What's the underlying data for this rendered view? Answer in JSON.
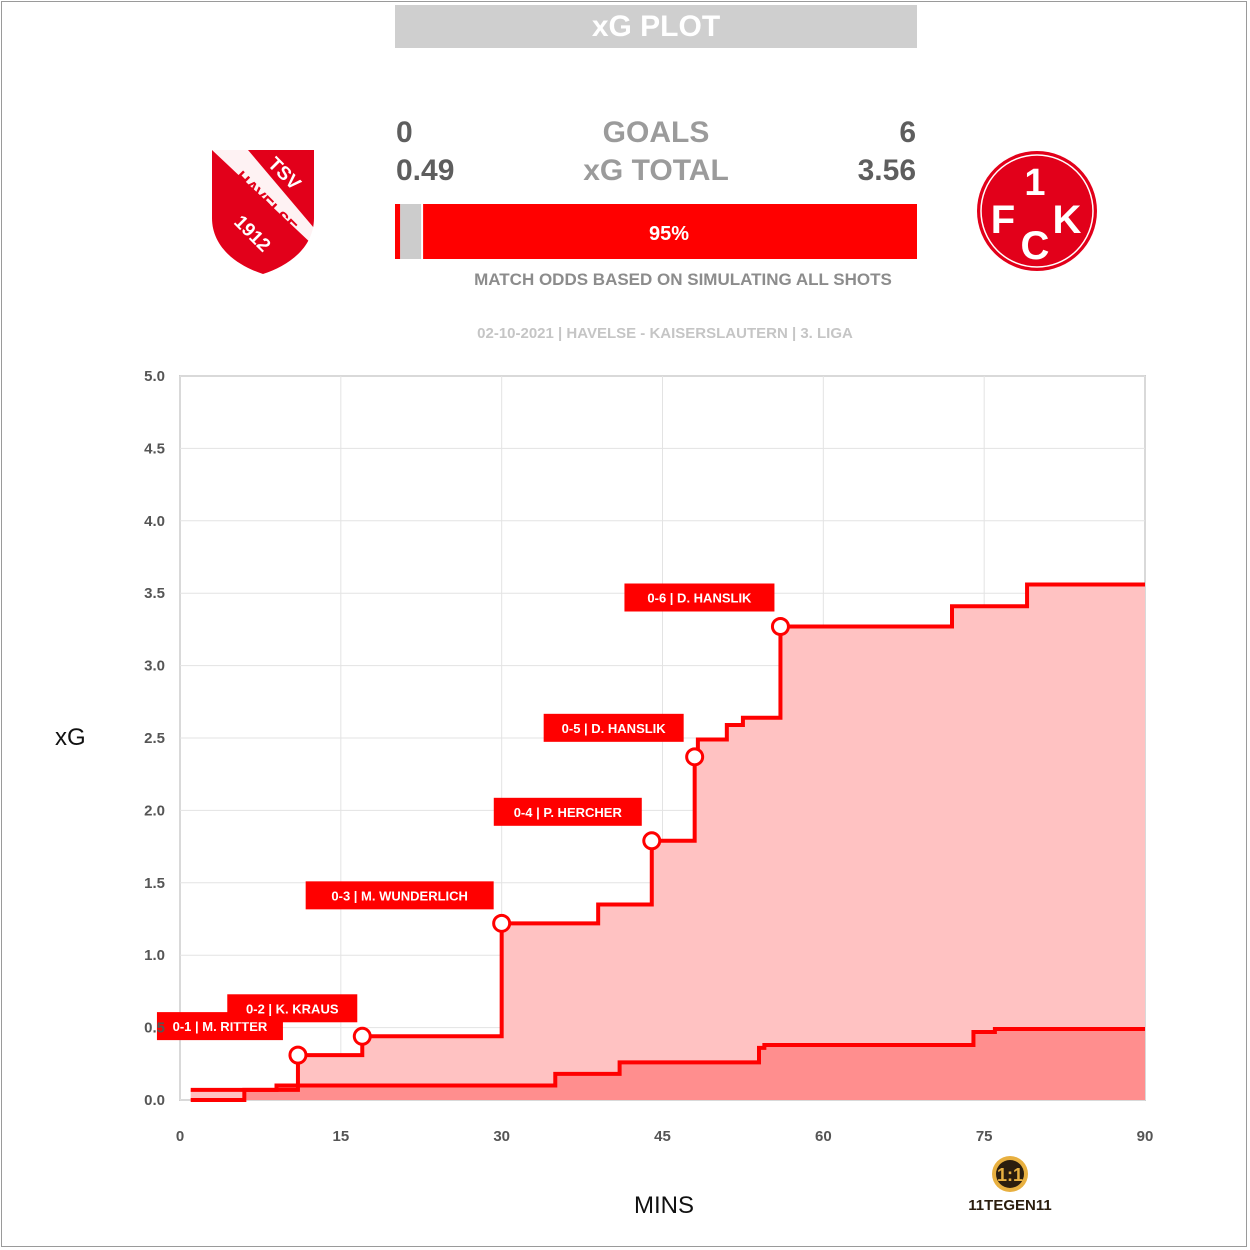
{
  "title": "xG PLOT",
  "home": {
    "goals": "0",
    "xg_total": "0.49",
    "badge_text": [
      "TSV",
      "HAVELSE",
      "1912"
    ]
  },
  "away": {
    "goals": "6",
    "xg_total": "3.56",
    "badge_text": "1FCK"
  },
  "labels": {
    "goals": "GOALS",
    "xg_total": "xG TOTAL"
  },
  "odds": {
    "draw": 0.04,
    "away": 0.95,
    "home": 0.01,
    "away_label": "95%",
    "caption": "MATCH ODDS BASED ON SIMULATING ALL SHOTS"
  },
  "match_info": "02-10-2021 | HAVELSE - KAISERSLAUTERN | 3. LIGA",
  "brand": "11TEGEN11",
  "colors": {
    "red": "#ff0000",
    "fill_away": "#ffc2c2",
    "fill_home": "#ff8e8e",
    "odds_draw": "#cccccc",
    "grid": "#e3e3e3",
    "title_bg": "#cfcfcf"
  },
  "chart_data": {
    "type": "line",
    "xlabel": "MINS",
    "ylabel": "xG",
    "xlim": [
      0,
      90
    ],
    "ylim": [
      0,
      5
    ],
    "x_ticks": [
      "0",
      "15",
      "30",
      "45",
      "60",
      "75",
      "90"
    ],
    "y_ticks": [
      "0.0",
      "0.5",
      "1.0",
      "1.5",
      "2.0",
      "2.5",
      "3.0",
      "3.5",
      "4.0",
      "4.5",
      "5.0"
    ],
    "grid": true,
    "series": [
      {
        "team": "Kaiserslautern",
        "steps": [
          [
            1,
            0.07
          ],
          [
            11,
            0.31
          ],
          [
            17,
            0.44
          ],
          [
            30,
            1.22
          ],
          [
            39,
            1.35
          ],
          [
            44,
            1.79
          ],
          [
            48,
            2.37
          ],
          [
            48.3,
            2.49
          ],
          [
            51,
            2.59
          ],
          [
            52.5,
            2.64
          ],
          [
            56,
            3.27
          ],
          [
            72,
            3.41
          ],
          [
            79,
            3.56
          ],
          [
            90,
            3.56
          ]
        ]
      },
      {
        "team": "Havelse",
        "steps": [
          [
            1,
            0.0
          ],
          [
            6,
            0.07
          ],
          [
            9,
            0.1
          ],
          [
            35,
            0.18
          ],
          [
            41,
            0.26
          ],
          [
            54,
            0.36
          ],
          [
            54.5,
            0.38
          ],
          [
            74,
            0.47
          ],
          [
            76,
            0.49
          ],
          [
            90,
            0.49
          ]
        ]
      }
    ],
    "annotations": [
      {
        "x": 11,
        "y": 0.31,
        "label": "0-1 | M. RITTER"
      },
      {
        "x": 17,
        "y": 0.44,
        "label": "0-2 | K. KRAUS"
      },
      {
        "x": 30,
        "y": 1.22,
        "label": "0-3 | M. WUNDERLICH"
      },
      {
        "x": 44,
        "y": 1.79,
        "label": "0-4 | P. HERCHER"
      },
      {
        "x": 48,
        "y": 2.37,
        "label": "0-5 | D. HANSLIK"
      },
      {
        "x": 56,
        "y": 3.27,
        "label": "0-6 | D. HANSLIK"
      }
    ]
  }
}
